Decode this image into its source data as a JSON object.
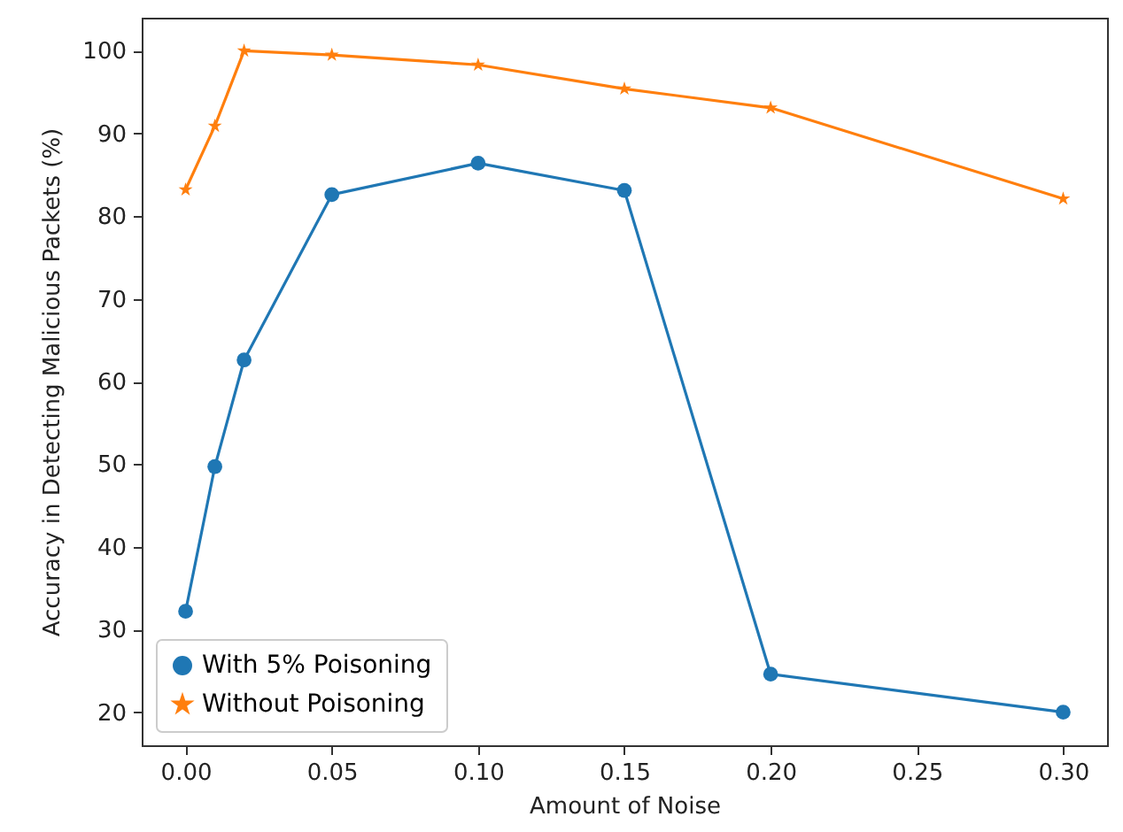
{
  "chart_data": {
    "type": "line",
    "xlabel": "Amount of Noise",
    "ylabel": "Accuracy in Detecting Malicious Packets (%)",
    "x": [
      0,
      0.01,
      0.02,
      0.05,
      0.1,
      0.15,
      0.2,
      0.3
    ],
    "series": [
      {
        "name": "With 5% Poisoning",
        "color": "#1f77b4",
        "marker": "circle",
        "values": [
          32.2,
          49.7,
          62.6,
          82.6,
          86.4,
          83.1,
          24.6,
          20.0
        ]
      },
      {
        "name": "Without Poisoning",
        "color": "#ff7f0e",
        "marker": "star",
        "values": [
          83.2,
          90.9,
          100.0,
          99.5,
          98.3,
          95.4,
          93.1,
          82.1
        ]
      }
    ],
    "xlim": [
      -0.015,
      0.315
    ],
    "xticks": [
      {
        "value": 0,
        "label": "0.00"
      },
      {
        "value": 0.05,
        "label": "0.05"
      },
      {
        "value": 0.1,
        "label": "0.10"
      },
      {
        "value": 0.15,
        "label": "0.15"
      },
      {
        "value": 0.2,
        "label": "0.20"
      },
      {
        "value": 0.25,
        "label": "0.25"
      },
      {
        "value": 0.3,
        "label": "0.30"
      }
    ],
    "ylim": [
      16,
      104
    ],
    "yticks": [
      20,
      30,
      40,
      50,
      60,
      70,
      80,
      90,
      100
    ],
    "grid": false,
    "legend": "bottom left",
    "line_style": "solid"
  }
}
